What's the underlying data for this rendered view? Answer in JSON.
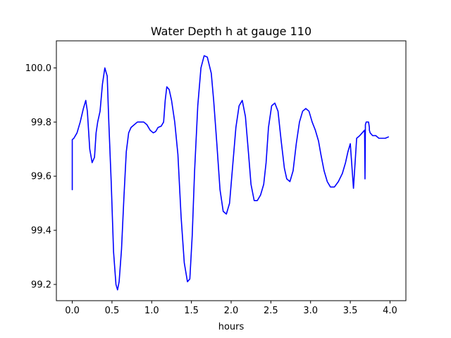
{
  "chart_data": {
    "type": "line",
    "title": "Water Depth h at gauge 110",
    "xlabel": "hours",
    "ylabel": "",
    "xlim": [
      -0.2,
      4.2
    ],
    "ylim": [
      99.14,
      100.1
    ],
    "xticks": [
      0.0,
      0.5,
      1.0,
      1.5,
      2.0,
      2.5,
      3.0,
      3.5,
      4.0
    ],
    "xtick_labels": [
      "0.0",
      "0.5",
      "1.0",
      "1.5",
      "2.0",
      "2.5",
      "3.0",
      "3.5",
      "4.0"
    ],
    "yticks": [
      99.2,
      99.4,
      99.6,
      99.8,
      100.0
    ],
    "ytick_labels": [
      "99.2",
      "99.4",
      "99.6",
      "99.8",
      "100.0"
    ],
    "grid": false,
    "series": [
      {
        "color": "#0000ff",
        "x": [
          0.0,
          0.0,
          0.0,
          0.02,
          0.06,
          0.1,
          0.14,
          0.17,
          0.19,
          0.22,
          0.25,
          0.28,
          0.3,
          0.32,
          0.35,
          0.38,
          0.41,
          0.44,
          0.46,
          0.49,
          0.52,
          0.55,
          0.57,
          0.59,
          0.62,
          0.65,
          0.68,
          0.71,
          0.74,
          0.78,
          0.82,
          0.86,
          0.9,
          0.94,
          0.98,
          1.02,
          1.05,
          1.08,
          1.12,
          1.15,
          1.17,
          1.19,
          1.22,
          1.25,
          1.29,
          1.33,
          1.37,
          1.41,
          1.45,
          1.48,
          1.51,
          1.54,
          1.58,
          1.62,
          1.66,
          1.7,
          1.75,
          1.78,
          1.82,
          1.86,
          1.9,
          1.94,
          1.98,
          2.02,
          2.06,
          2.1,
          2.14,
          2.18,
          2.22,
          2.25,
          2.29,
          2.33,
          2.37,
          2.41,
          2.44,
          2.47,
          2.51,
          2.55,
          2.59,
          2.63,
          2.67,
          2.7,
          2.74,
          2.78,
          2.82,
          2.86,
          2.9,
          2.94,
          2.98,
          3.02,
          3.06,
          3.1,
          3.13,
          3.17,
          3.21,
          3.25,
          3.3,
          3.35,
          3.4,
          3.44,
          3.47,
          3.5,
          3.54,
          3.58,
          3.62,
          3.65,
          3.68,
          3.685,
          3.69,
          3.69,
          3.7,
          3.72,
          3.73,
          3.735,
          3.74,
          3.74,
          3.75,
          3.78,
          3.82,
          3.86,
          3.9,
          3.94,
          3.98
        ],
        "y": [
          99.55,
          99.73,
          99.735,
          99.74,
          99.76,
          99.8,
          99.85,
          99.88,
          99.84,
          99.7,
          99.65,
          99.67,
          99.76,
          99.8,
          99.84,
          99.94,
          100.0,
          99.97,
          99.8,
          99.58,
          99.32,
          99.2,
          99.18,
          99.21,
          99.33,
          99.52,
          99.69,
          99.76,
          99.78,
          99.79,
          99.8,
          99.8,
          99.8,
          99.79,
          99.77,
          99.76,
          99.765,
          99.78,
          99.785,
          99.8,
          99.88,
          99.93,
          99.92,
          99.88,
          99.8,
          99.68,
          99.45,
          99.28,
          99.21,
          99.22,
          99.38,
          99.62,
          99.86,
          100.0,
          100.045,
          100.04,
          99.98,
          99.88,
          99.72,
          99.55,
          99.47,
          99.46,
          99.5,
          99.64,
          99.78,
          99.86,
          99.88,
          99.82,
          99.68,
          99.57,
          99.51,
          99.51,
          99.53,
          99.57,
          99.65,
          99.78,
          99.86,
          99.87,
          99.84,
          99.73,
          99.63,
          99.59,
          99.58,
          99.62,
          99.72,
          99.8,
          99.84,
          99.85,
          99.84,
          99.8,
          99.77,
          99.73,
          99.68,
          99.62,
          99.58,
          99.56,
          99.56,
          99.58,
          99.61,
          99.65,
          99.69,
          99.72,
          99.555,
          99.74,
          99.75,
          99.76,
          99.77,
          99.59,
          99.78,
          99.79,
          99.8,
          99.8,
          99.8,
          99.79,
          99.78,
          99.77,
          99.76,
          99.75,
          99.75,
          99.74,
          99.74,
          99.74,
          99.745
        ]
      }
    ]
  }
}
